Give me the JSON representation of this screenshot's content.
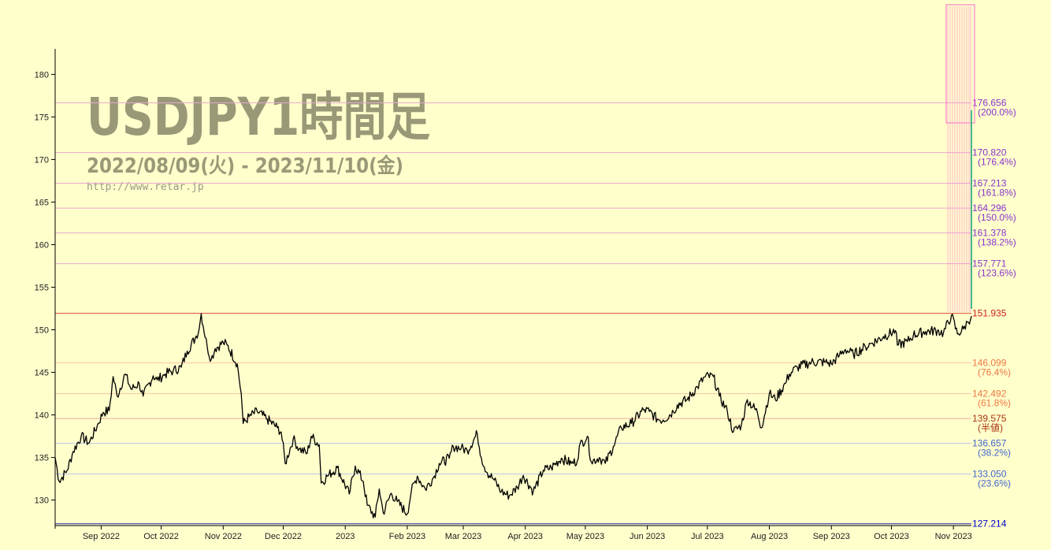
{
  "chart_data": {
    "type": "line",
    "title": "USDJPY1時間足",
    "subtitle": "2022/08/09(火) - 2023/11/10(金)",
    "url": "http://www.retar.jp",
    "ylim": [
      127.0,
      183.0
    ],
    "y_ticks": [
      130,
      135,
      140,
      145,
      150,
      155,
      160,
      165,
      170,
      175,
      180
    ],
    "x_start": "2022-08-09",
    "x_end": "2023-11-10",
    "x_ticks": [
      {
        "date": "2022-09-01",
        "label": "Sep 2022"
      },
      {
        "date": "2022-10-01",
        "label": "Oct 2022"
      },
      {
        "date": "2022-11-01",
        "label": "Nov 2022"
      },
      {
        "date": "2022-12-01",
        "label": "Dec 2022"
      },
      {
        "date": "2023-01-01",
        "label": "2023"
      },
      {
        "date": "2023-02-01",
        "label": "Feb 2023"
      },
      {
        "date": "2023-03-01",
        "label": "Mar 2023"
      },
      {
        "date": "2023-04-01",
        "label": "Apr 2023"
      },
      {
        "date": "2023-05-01",
        "label": "May 2023"
      },
      {
        "date": "2023-06-01",
        "label": "Jun 2023"
      },
      {
        "date": "2023-07-01",
        "label": "Jul 2023"
      },
      {
        "date": "2023-08-01",
        "label": "Aug 2023"
      },
      {
        "date": "2023-09-01",
        "label": "Sep 2023"
      },
      {
        "date": "2023-10-01",
        "label": "Oct 2023"
      },
      {
        "date": "2023-11-01",
        "label": "Nov 2023"
      }
    ],
    "grid": false,
    "series": [
      {
        "color": "#000000",
        "points": [
          [
            "2022-08-09",
            135.0
          ],
          [
            "2022-08-11",
            132.2
          ],
          [
            "2022-08-15",
            133.5
          ],
          [
            "2022-08-18",
            135.7
          ],
          [
            "2022-08-22",
            137.5
          ],
          [
            "2022-08-26",
            136.7
          ],
          [
            "2022-08-30",
            138.7
          ],
          [
            "2022-09-02",
            140.3
          ],
          [
            "2022-09-05",
            140.5
          ],
          [
            "2022-09-07",
            144.5
          ],
          [
            "2022-09-09",
            142.2
          ],
          [
            "2022-09-13",
            144.8
          ],
          [
            "2022-09-16",
            143.0
          ],
          [
            "2022-09-20",
            143.7
          ],
          [
            "2022-09-22",
            142.2
          ],
          [
            "2022-09-27",
            144.6
          ],
          [
            "2022-09-29",
            144.1
          ],
          [
            "2022-10-03",
            144.8
          ],
          [
            "2022-10-07",
            145.2
          ],
          [
            "2022-10-11",
            145.6
          ],
          [
            "2022-10-14",
            147.5
          ],
          [
            "2022-10-18",
            149.0
          ],
          [
            "2022-10-20",
            150.1
          ],
          [
            "2022-10-21",
            151.9
          ],
          [
            "2022-10-24",
            148.0
          ],
          [
            "2022-10-26",
            146.5
          ],
          [
            "2022-10-28",
            147.8
          ],
          [
            "2022-11-01",
            148.5
          ],
          [
            "2022-11-03",
            148.2
          ],
          [
            "2022-11-08",
            146.0
          ],
          [
            "2022-11-10",
            142.5
          ],
          [
            "2022-11-11",
            139.0
          ],
          [
            "2022-11-14",
            139.8
          ],
          [
            "2022-11-18",
            140.4
          ],
          [
            "2022-11-23",
            139.5
          ],
          [
            "2022-11-28",
            138.5
          ],
          [
            "2022-11-30",
            138.0
          ],
          [
            "2022-12-02",
            134.3
          ],
          [
            "2022-12-06",
            137.2
          ],
          [
            "2022-12-09",
            136.0
          ],
          [
            "2022-12-13",
            135.5
          ],
          [
            "2022-12-15",
            137.5
          ],
          [
            "2022-12-19",
            136.5
          ],
          [
            "2022-12-20",
            132.0
          ],
          [
            "2022-12-23",
            132.8
          ],
          [
            "2022-12-28",
            133.8
          ],
          [
            "2023-01-03",
            130.7
          ],
          [
            "2023-01-06",
            134.0
          ],
          [
            "2023-01-10",
            132.2
          ],
          [
            "2023-01-12",
            129.4
          ],
          [
            "2023-01-16",
            128.0
          ],
          [
            "2023-01-18",
            131.3
          ],
          [
            "2023-01-20",
            128.5
          ],
          [
            "2023-01-24",
            130.8
          ],
          [
            "2023-01-27",
            129.8
          ],
          [
            "2023-02-01",
            128.4
          ],
          [
            "2023-02-03",
            131.0
          ],
          [
            "2023-02-06",
            132.8
          ],
          [
            "2023-02-10",
            131.3
          ],
          [
            "2023-02-14",
            132.6
          ],
          [
            "2023-02-17",
            134.3
          ],
          [
            "2023-02-22",
            134.9
          ],
          [
            "2023-02-24",
            136.3
          ],
          [
            "2023-02-28",
            136.1
          ],
          [
            "2023-03-03",
            135.8
          ],
          [
            "2023-03-08",
            137.8
          ],
          [
            "2023-03-10",
            135.0
          ],
          [
            "2023-03-13",
            133.2
          ],
          [
            "2023-03-16",
            132.5
          ],
          [
            "2023-03-20",
            131.0
          ],
          [
            "2023-03-24",
            130.5
          ],
          [
            "2023-03-28",
            131.5
          ],
          [
            "2023-03-31",
            132.9
          ],
          [
            "2023-04-05",
            131.0
          ],
          [
            "2023-04-10",
            133.5
          ],
          [
            "2023-04-14",
            133.8
          ],
          [
            "2023-04-19",
            134.9
          ],
          [
            "2023-04-24",
            134.3
          ],
          [
            "2023-04-27",
            134.6
          ],
          [
            "2023-04-28",
            136.3
          ],
          [
            "2023-05-02",
            137.5
          ],
          [
            "2023-05-04",
            134.5
          ],
          [
            "2023-05-08",
            135.0
          ],
          [
            "2023-05-11",
            134.3
          ],
          [
            "2023-05-15",
            136.3
          ],
          [
            "2023-05-19",
            138.5
          ],
          [
            "2023-05-24",
            139.0
          ],
          [
            "2023-05-30",
            140.6
          ],
          [
            "2023-06-02",
            140.4
          ],
          [
            "2023-06-06",
            139.5
          ],
          [
            "2023-06-09",
            139.4
          ],
          [
            "2023-06-14",
            140.4
          ],
          [
            "2023-06-16",
            141.2
          ],
          [
            "2023-06-21",
            141.8
          ],
          [
            "2023-06-26",
            143.3
          ],
          [
            "2023-06-30",
            144.5
          ],
          [
            "2023-07-04",
            144.5
          ],
          [
            "2023-07-07",
            142.2
          ],
          [
            "2023-07-11",
            140.4
          ],
          [
            "2023-07-14",
            138.0
          ],
          [
            "2023-07-18",
            138.8
          ],
          [
            "2023-07-21",
            141.8
          ],
          [
            "2023-07-26",
            140.3
          ],
          [
            "2023-07-28",
            138.5
          ],
          [
            "2023-08-01",
            142.5
          ],
          [
            "2023-08-04",
            141.8
          ],
          [
            "2023-08-09",
            143.7
          ],
          [
            "2023-08-11",
            144.8
          ],
          [
            "2023-08-15",
            145.6
          ],
          [
            "2023-08-22",
            146.2
          ],
          [
            "2023-08-29",
            146.2
          ],
          [
            "2023-09-01",
            146.0
          ],
          [
            "2023-09-05",
            147.0
          ],
          [
            "2023-09-08",
            147.7
          ],
          [
            "2023-09-12",
            147.1
          ],
          [
            "2023-09-18",
            148.0
          ],
          [
            "2023-09-21",
            148.4
          ],
          [
            "2023-09-27",
            149.2
          ],
          [
            "2023-10-03",
            149.9
          ],
          [
            "2023-10-04",
            148.2
          ],
          [
            "2023-10-09",
            148.6
          ],
          [
            "2023-10-12",
            149.4
          ],
          [
            "2023-10-18",
            149.8
          ],
          [
            "2023-10-24",
            149.9
          ],
          [
            "2023-10-27",
            149.6
          ],
          [
            "2023-10-31",
            151.7
          ],
          [
            "2023-11-03",
            149.5
          ],
          [
            "2023-11-06",
            150.1
          ],
          [
            "2023-11-08",
            150.9
          ],
          [
            "2023-11-10",
            151.6
          ]
        ]
      }
    ],
    "levels": [
      {
        "value": 176.656,
        "label": "176.656",
        "pct": "(200.0%)",
        "color": "#8833cc",
        "line_color": "#e8a8d0"
      },
      {
        "value": 170.82,
        "label": "170.820",
        "pct": "(176.4%)",
        "color": "#8833cc",
        "line_color": "#e8a8d0"
      },
      {
        "value": 167.213,
        "label": "167.213",
        "pct": "(161.8%)",
        "color": "#8833cc",
        "line_color": "#e8a8d0"
      },
      {
        "value": 164.296,
        "label": "164.296",
        "pct": "(150.0%)",
        "color": "#8833cc",
        "line_color": "#e8a8d0"
      },
      {
        "value": 161.378,
        "label": "161.378",
        "pct": "(138.2%)",
        "color": "#8833cc",
        "line_color": "#e8a8d0"
      },
      {
        "value": 157.771,
        "label": "157.771",
        "pct": "(123.6%)",
        "color": "#8833cc",
        "line_color": "#e8a8d0"
      },
      {
        "value": 151.935,
        "label": "151.935",
        "pct": "",
        "color": "#cc2222",
        "line_color": "#dd4444"
      },
      {
        "value": 146.099,
        "label": "146.099",
        "pct": "(76.4%)",
        "color": "#ee7744",
        "line_color": "#f4c4a0"
      },
      {
        "value": 142.492,
        "label": "142.492",
        "pct": "(61.8%)",
        "color": "#ee7744",
        "line_color": "#f4c4a0"
      },
      {
        "value": 139.575,
        "label": "139.575",
        "pct": "(半値)",
        "color": "#aa3311",
        "line_color": "#e8b0a0"
      },
      {
        "value": 136.657,
        "label": "136.657",
        "pct": "(38.2%)",
        "color": "#4466cc",
        "line_color": "#b8c8e8"
      },
      {
        "value": 133.05,
        "label": "133.050",
        "pct": "(23.6%)",
        "color": "#4466cc",
        "line_color": "#b8c8e8"
      },
      {
        "value": 127.214,
        "label": "127.214",
        "pct": "",
        "color": "#0000cc",
        "line_color": "#2222aa"
      }
    ]
  }
}
